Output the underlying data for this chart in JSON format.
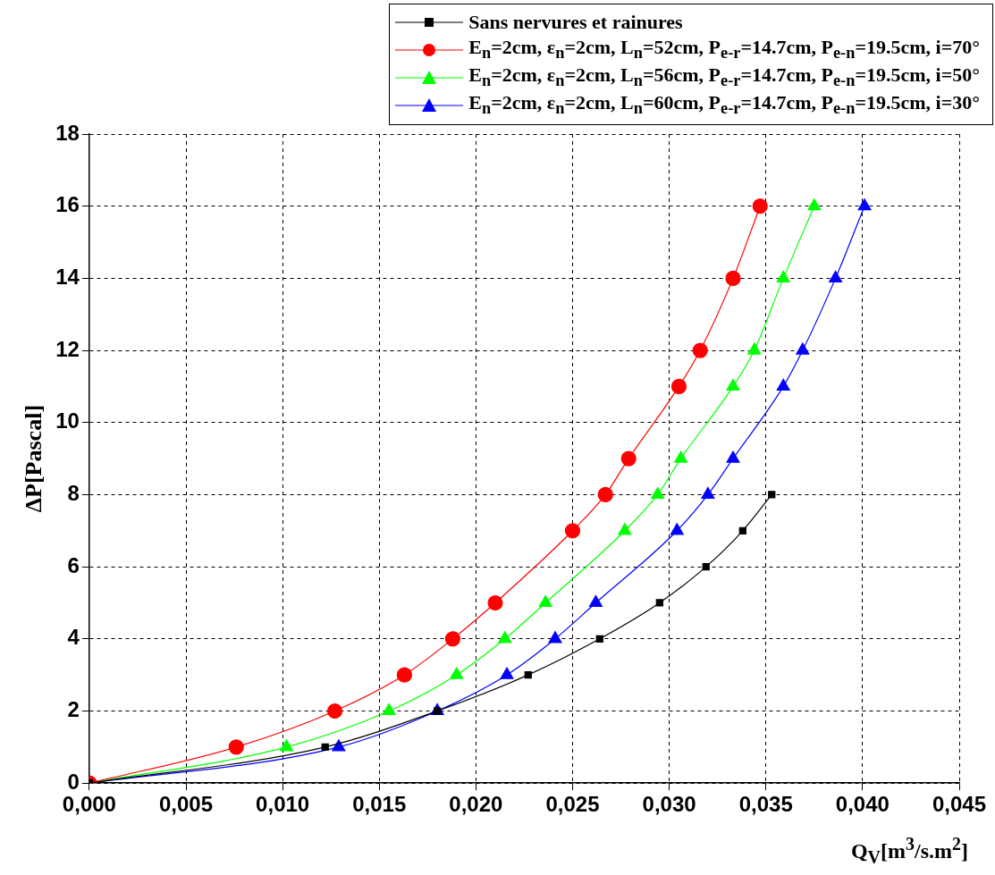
{
  "chart_data": {
    "type": "line",
    "xlabel": "Q$_{V}$[m$^{3}$/s.m$^{2}$]",
    "ylabel": "ΔP[Pascal]",
    "xlim": [
      0,
      0.045
    ],
    "ylim": [
      0,
      18
    ],
    "xticks": [
      {
        "value": 0,
        "label": "0,000"
      },
      {
        "value": 0.005,
        "label": "0,005"
      },
      {
        "value": 0.01,
        "label": "0,010"
      },
      {
        "value": 0.015,
        "label": "0,015"
      },
      {
        "value": 0.02,
        "label": "0,020"
      },
      {
        "value": 0.025,
        "label": "0,025"
      },
      {
        "value": 0.03,
        "label": "0,030"
      },
      {
        "value": 0.035,
        "label": "0,035"
      },
      {
        "value": 0.04,
        "label": "0,040"
      },
      {
        "value": 0.045,
        "label": "0,045"
      }
    ],
    "yticks": [
      0,
      2,
      4,
      6,
      8,
      10,
      12,
      14,
      16,
      18
    ],
    "grid": true,
    "legend": "top right",
    "line_style": "solid",
    "series": [
      {
        "name": "Sans nervures et rainures",
        "color": "#000000",
        "marker": "square",
        "x": [
          0,
          0.0122,
          0.018,
          0.0227,
          0.0264,
          0.0295,
          0.0319,
          0.0338,
          0.0353
        ],
        "values": [
          0,
          1,
          2,
          3,
          4,
          5,
          6,
          7,
          8
        ]
      },
      {
        "name": "E$_{n}$=2cm, ε$_{n}$=2cm, L$_{n}$=52cm, P$_{e-r}$=14.7cm, P$_{e-n}$=19.5cm, i=70°",
        "color": "#ff0000",
        "marker": "circle",
        "x": [
          0,
          0.0076,
          0.0127,
          0.0163,
          0.0188,
          0.021,
          0.025,
          0.0267,
          0.0279,
          0.0305,
          0.0316,
          0.0333,
          0.0347
        ],
        "values": [
          0,
          1,
          2,
          3,
          4,
          5,
          7,
          8,
          9,
          11,
          12,
          14,
          16
        ]
      },
      {
        "name": "E$_{n}$=2cm, ε$_{n}$=2cm, L$_{n}$=56cm, P$_{e-r}$=14.7cm, P$_{e-n}$=19.5cm, i=50°",
        "color": "#00ff00",
        "marker": "triangle",
        "x": [
          0,
          0.0102,
          0.0155,
          0.019,
          0.0215,
          0.0236,
          0.0277,
          0.0294,
          0.0306,
          0.0333,
          0.0344,
          0.0359,
          0.0375
        ],
        "values": [
          0,
          1,
          2,
          3,
          4,
          5,
          7,
          8,
          9,
          11,
          12,
          14,
          16
        ]
      },
      {
        "name": "E$_{n}$=2cm, ε$_{n}$=2cm, L$_{n}$=60cm, P$_{e-r}$=14.7cm, P$_{e-n}$=19.5cm, i=30°",
        "color": "#0000ff",
        "marker": "triangle",
        "x": [
          0,
          0.0129,
          0.018,
          0.0216,
          0.0241,
          0.0262,
          0.0304,
          0.032,
          0.0333,
          0.0359,
          0.0369,
          0.0386,
          0.0401
        ],
        "values": [
          0,
          1,
          2,
          3,
          4,
          5,
          7,
          8,
          9,
          11,
          12,
          14,
          16
        ]
      }
    ]
  }
}
